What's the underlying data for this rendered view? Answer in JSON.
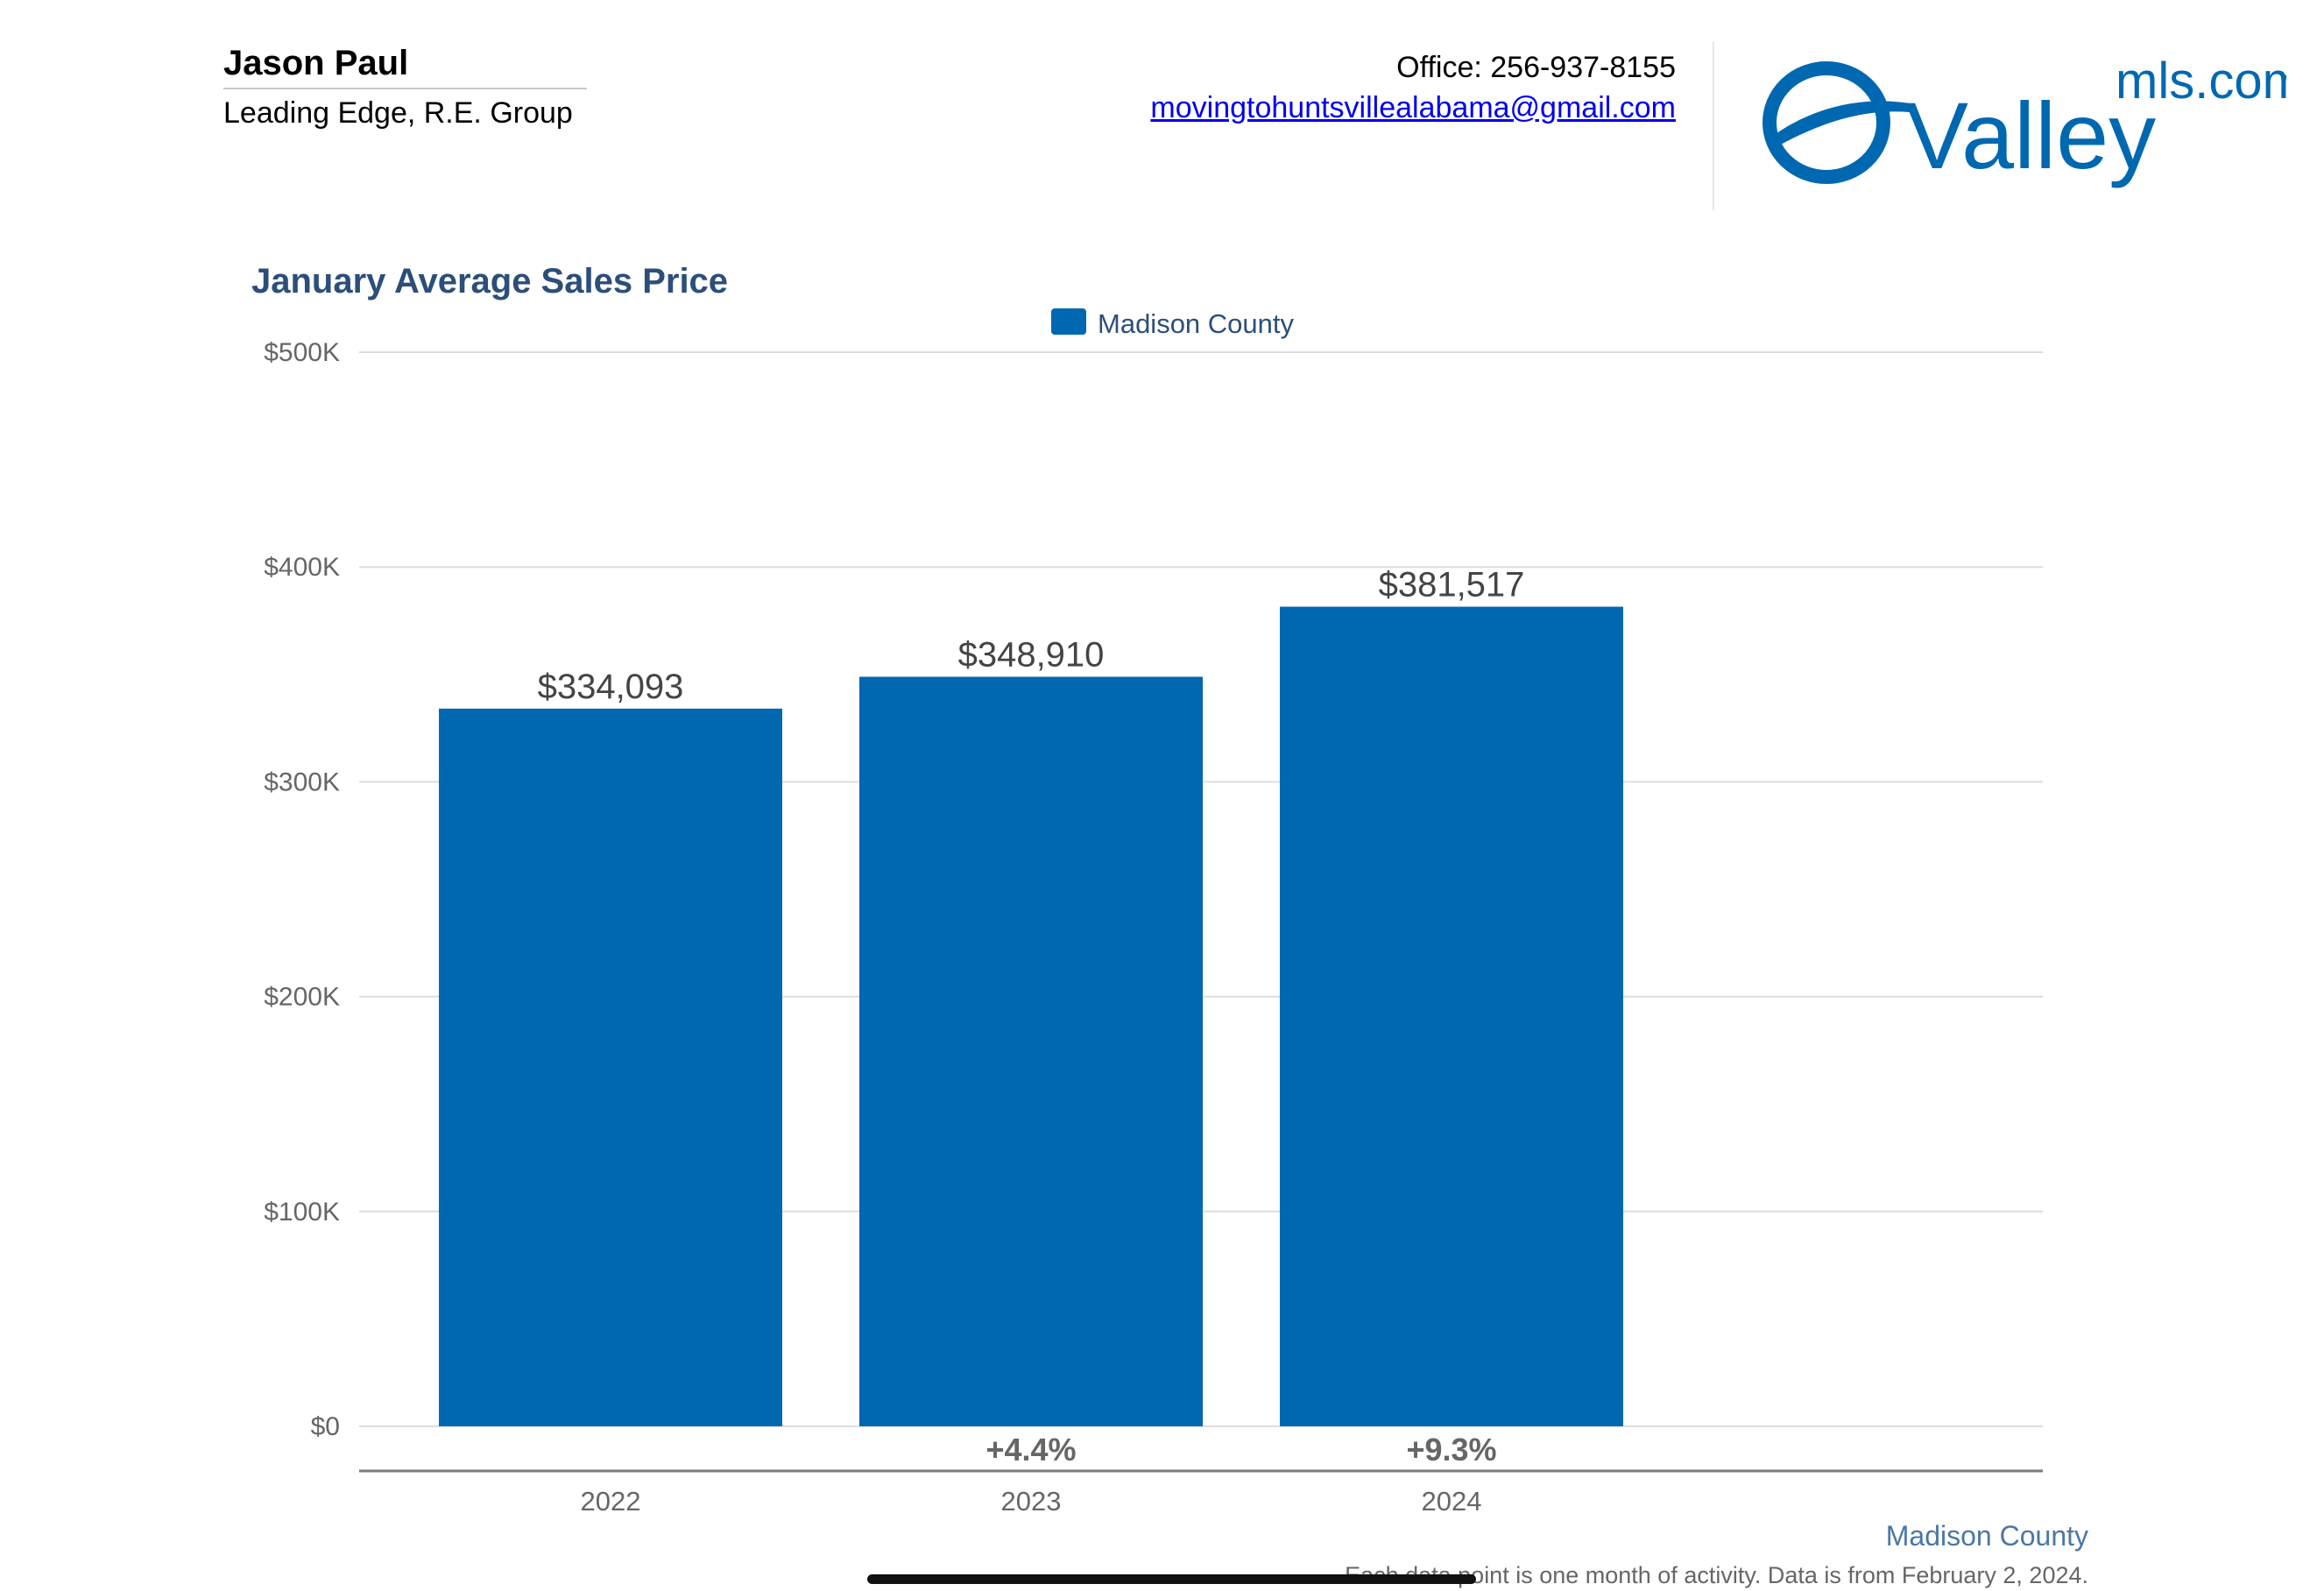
{
  "agent": {
    "name": "Jason Paul",
    "company": "Leading Edge, R.E. Group",
    "office": "Office: 256-937-8155",
    "email": "movingtohuntsvillealabama@gmail.com"
  },
  "logo": {
    "brand": "Valley",
    "suffix": "mls.com",
    "color": "#0068b1"
  },
  "chart_data": {
    "type": "bar",
    "title": "January Average Sales Price",
    "legend": "Madison County",
    "legend_placement": "top-center",
    "categories": [
      "2022",
      "2023",
      "2024"
    ],
    "series": [
      {
        "name": "Madison County",
        "values": [
          334093,
          348910,
          381517
        ],
        "color": "#0068b1"
      }
    ],
    "value_labels": [
      "$334,093",
      "$348,910",
      "$381,517"
    ],
    "change_labels": [
      "",
      "+4.4%",
      "+9.3%"
    ],
    "y_ticks": [
      0,
      100000,
      200000,
      300000,
      400000,
      500000
    ],
    "y_tick_labels": [
      "$0",
      "$100K",
      "$200K",
      "$300K",
      "$400K",
      "$500K"
    ],
    "ylim": [
      0,
      500000
    ],
    "grid": true,
    "xlabel": "",
    "ylabel": ""
  },
  "footer": {
    "region": "Madison County",
    "note": "Each data point is one month of activity. Data is from February 2, 2024."
  }
}
